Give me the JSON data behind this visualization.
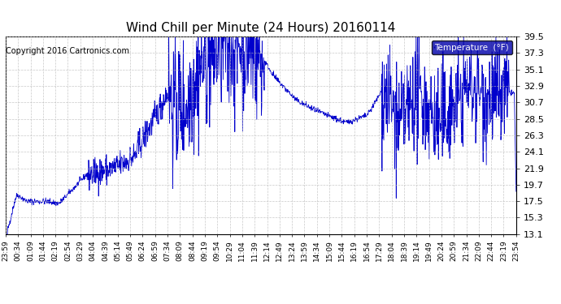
{
  "title": "Wind Chill per Minute (24 Hours) 20160114",
  "copyright": "Copyright 2016 Cartronics.com",
  "legend_label": "Temperature  (°F)",
  "line_color": "#0000cc",
  "background_color": "#ffffff",
  "grid_color": "#bbbbbb",
  "ylim": [
    13.1,
    39.5
  ],
  "yticks": [
    13.1,
    15.3,
    17.5,
    19.7,
    21.9,
    24.1,
    26.3,
    28.5,
    30.7,
    32.9,
    35.1,
    37.3,
    39.5
  ],
  "x_labels": [
    "23:59",
    "00:34",
    "01:09",
    "01:44",
    "02:19",
    "02:54",
    "03:29",
    "04:04",
    "04:39",
    "05:14",
    "05:49",
    "06:24",
    "06:59",
    "07:34",
    "08:09",
    "08:44",
    "09:19",
    "09:54",
    "10:29",
    "11:04",
    "11:39",
    "12:14",
    "12:49",
    "13:24",
    "13:59",
    "14:34",
    "15:09",
    "15:44",
    "16:19",
    "16:54",
    "17:29",
    "18:04",
    "18:39",
    "19:14",
    "19:49",
    "20:24",
    "20:59",
    "21:34",
    "22:09",
    "22:44",
    "23:19",
    "23:54"
  ],
  "legend_bg": "#0000aa",
  "legend_text_color": "#ffffff",
  "title_fontsize": 11,
  "copyright_fontsize": 7,
  "ytick_fontsize": 8,
  "xtick_fontsize": 6.5
}
